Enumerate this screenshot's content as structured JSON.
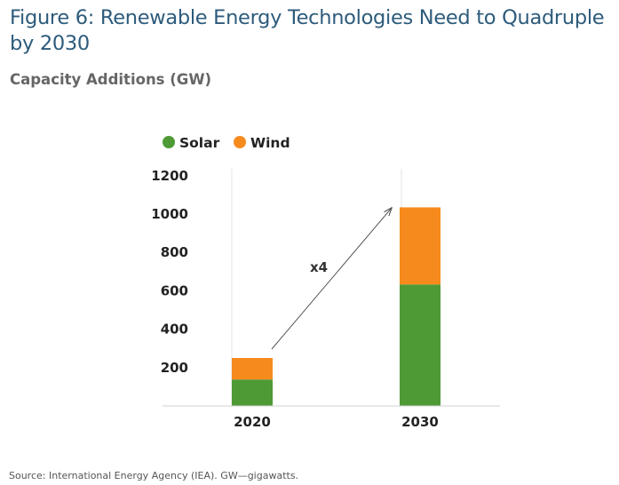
{
  "figure": {
    "title": "Figure 6: Renewable Energy Technologies Need to Quadruple by 2030",
    "subtitle": "Capacity Additions (GW)",
    "source": "Source: International Energy Agency (IEA). GW—gigawatts."
  },
  "chart_data": {
    "type": "bar",
    "stacked": true,
    "title": "Figure 6: Renewable Energy Technologies Need to Quadruple by 2030",
    "subtitle": "Capacity Additions (GW)",
    "xlabel": "",
    "ylabel": "",
    "categories": [
      "2020",
      "2030"
    ],
    "series": [
      {
        "name": "Solar",
        "color": "#4e9a35",
        "values": [
          138,
          633
        ]
      },
      {
        "name": "Wind",
        "color": "#f78a1d",
        "values": [
          112,
          402
        ]
      }
    ],
    "ylim": [
      0,
      1200
    ],
    "yticks": [
      200,
      400,
      600,
      800,
      1000,
      1200
    ],
    "legend_position": "top-left",
    "grid": false,
    "annotation": {
      "text": "x4",
      "arrow": "from 2020 bar top to 2030 bar top"
    }
  }
}
